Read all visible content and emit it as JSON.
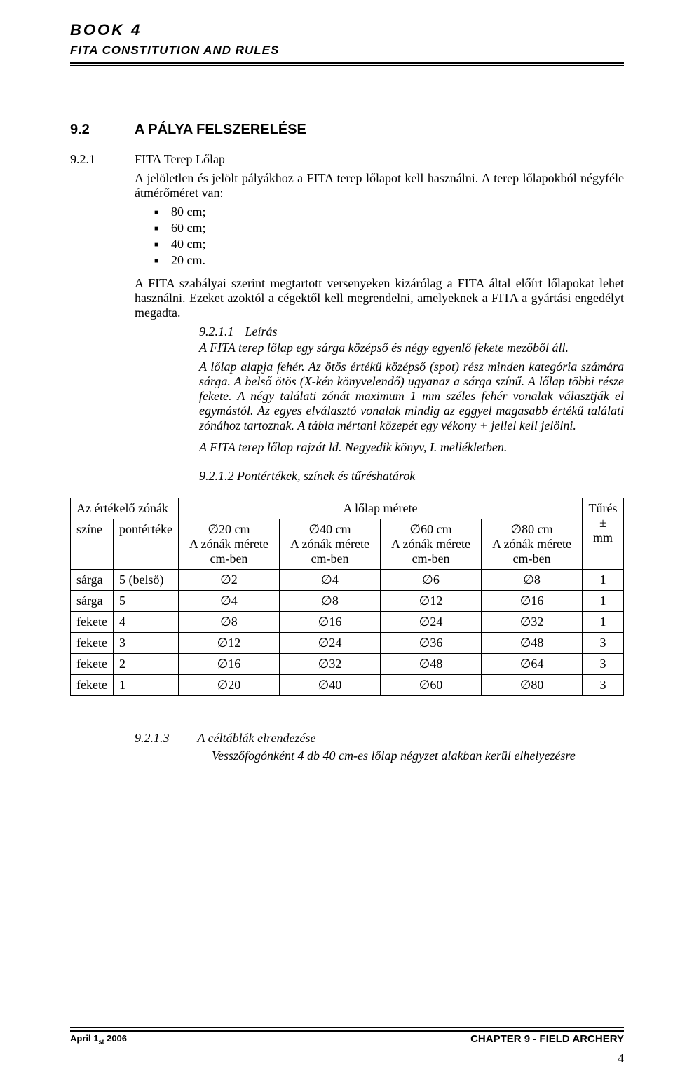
{
  "header": {
    "line1": "BOOK 4",
    "line2": "FITA CONSTITUTION AND RULES"
  },
  "section": {
    "num": "9.2",
    "title": "A PÁLYA FELSZERELÉSE"
  },
  "sub921": {
    "num": "9.2.1",
    "title": "FITA Terep Lőlap",
    "p1": "A jelöletlen és jelölt pályákhoz a FITA terep lőlapot kell használni. A terep lőlapokból négyféle átmérőméret van:",
    "bullets": [
      "80 cm;",
      "60 cm;",
      "40 cm;",
      "20 cm."
    ],
    "p2": "A FITA szabályai szerint megtartott versenyeken kizárólag a FITA által előírt lőlapokat lehet használni. Ezeket azoktól a cégektől kell megrendelni, amelyeknek a FITA a gyártási engedélyt megadta."
  },
  "sub9211": {
    "num": "9.2.1.1",
    "title": "Leírás",
    "p1": "A FITA terep lőlap egy sárga középső és négy egyenlő fekete mezőből áll.",
    "p2": "A lőlap alapja fehér. Az ötös értékű középső (spot) rész minden kategória számára sárga. A belső ötös (X-kén könyvelendő) ugyanaz a sárga színű. A lőlap többi része fekete. A négy találati zónát maximum 1 mm széles fehér vonalak választják el egymástól. Az egyes elválasztó vonalak mindig az eggyel magasabb értékű találati zónához tartoznak. A tábla mértani közepét egy vékony + jellel kell jelölni.",
    "p3": "A FITA terep lőlap rajzát ld. Negyedik könyv, I. mellékletben."
  },
  "sub9212": {
    "numtitle": "9.2.1.2   Pontértékek, színek és tűréshatárok"
  },
  "table": {
    "h_left": "Az értékelő zónák",
    "h_right": "A lőlap mérete",
    "h_szine": "színe",
    "h_pont": "pontértéke",
    "h_c20": "∅20 cm\nA zónák mérete cm-ben",
    "h_c40": "∅40 cm\nA zónák mérete cm-ben",
    "h_c60": "∅60 cm\nA zónák mérete cm-ben",
    "h_c80": "∅80 cm\nA zónák mérete cm-ben",
    "h_tur": "Tűrés\n± mm",
    "rows": [
      {
        "szine": "sárga",
        "pont": "5 (belső)",
        "c20": "∅2",
        "c40": "∅4",
        "c60": "∅6",
        "c80": "∅8",
        "tur": "1"
      },
      {
        "szine": "sárga",
        "pont": "5",
        "c20": "∅4",
        "c40": "∅8",
        "c60": "∅12",
        "c80": "∅16",
        "tur": "1"
      },
      {
        "szine": "fekete",
        "pont": "4",
        "c20": "∅8",
        "c40": "∅16",
        "c60": "∅24",
        "c80": "∅32",
        "tur": "1"
      },
      {
        "szine": "fekete",
        "pont": "3",
        "c20": "∅12",
        "c40": "∅24",
        "c60": "∅36",
        "c80": "∅48",
        "tur": "3"
      },
      {
        "szine": "fekete",
        "pont": "2",
        "c20": "∅16",
        "c40": "∅32",
        "c60": "∅48",
        "c80": "∅64",
        "tur": "3"
      },
      {
        "szine": "fekete",
        "pont": "1",
        "c20": "∅20",
        "c40": "∅40",
        "c60": "∅60",
        "c80": "∅80",
        "tur": "3"
      }
    ]
  },
  "sub9213": {
    "num": "9.2.1.3",
    "title": "A céltáblák elrendezése",
    "body": "Vesszőfogónként 4 db 40 cm-es lőlap négyzet alakban kerül elhelyezésre"
  },
  "footer": {
    "left_a": "April 1",
    "left_b": "st",
    "left_c": " 2006",
    "right": "CHAPTER 9 - FIELD ARCHERY",
    "page": "4"
  }
}
